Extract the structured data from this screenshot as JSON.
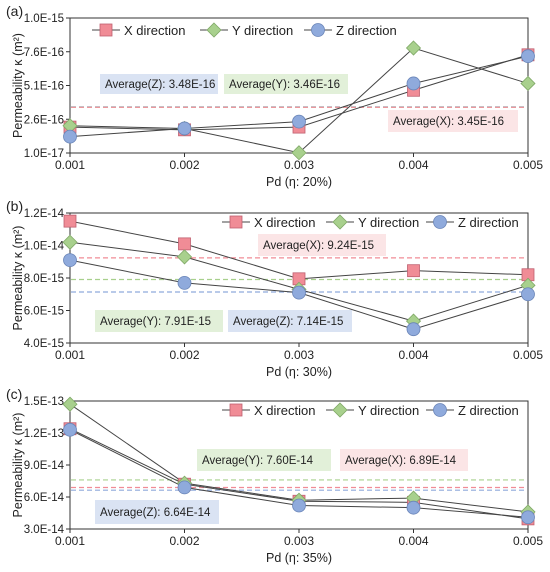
{
  "chart_data": [
    {
      "type": "line",
      "panel_label": "(a)",
      "title": "",
      "xlabel": "Pd (η: 20%)",
      "ylabel": "Permeability κ (m²)",
      "categories": [
        "0.001",
        "0.002",
        "0.003",
        "0.004",
        "0.005"
      ],
      "y_ticks": [
        "1.0E-17",
        "2.6E-16",
        "5.1E-16",
        "7.6E-16",
        "1.0E-15"
      ],
      "ylim": [
        1e-17,
        1e-15
      ],
      "legend_placement": "top",
      "series": [
        {
          "name": "X direction",
          "marker": "square",
          "color": "#f08c96",
          "values": [
            2e-16,
            1.8e-16,
            2e-16,
            4.7e-16,
            7.3e-16
          ]
        },
        {
          "name": "Y direction",
          "marker": "diamond",
          "color": "#a8d08d",
          "values": [
            2.1e-16,
            1.9e-16,
            1.2e-17,
            7.8e-16,
            5.2e-16
          ]
        },
        {
          "name": "Z direction",
          "marker": "circle",
          "color": "#8faadc",
          "values": [
            1.3e-16,
            1.9e-16,
            2.4e-16,
            5.2e-16,
            7.2e-16
          ]
        }
      ],
      "averages": [
        {
          "label": "Average(Z):  3.48E-16",
          "value": 3.48e-16,
          "series": "Z direction",
          "box_color": "#dae3f3",
          "line_color": "#8faadc"
        },
        {
          "label": "Average(Y):  3.46E-16",
          "value": 3.46e-16,
          "series": "Y direction",
          "box_color": "#e2f0d9",
          "line_color": "#a8d08d"
        },
        {
          "label": "Average(X):  3.45E-16",
          "value": 3.45e-16,
          "series": "X direction",
          "box_color": "#fbe5e6",
          "line_color": "#f08c96"
        }
      ]
    },
    {
      "type": "line",
      "panel_label": "(b)",
      "title": "",
      "xlabel": "Pd (η: 30%)",
      "ylabel": "Permeability κ (m²)",
      "categories": [
        "0.001",
        "0.002",
        "0.003",
        "0.004",
        "0.005"
      ],
      "y_ticks": [
        "4.0E-15",
        "6.0E-15",
        "8.0E-15",
        "1.0E-14",
        "1.2E-14"
      ],
      "ylim": [
        4e-15,
        1.2e-14
      ],
      "legend_placement": "top",
      "series": [
        {
          "name": "X direction",
          "marker": "square",
          "color": "#f08c96",
          "values": [
            1.15e-14,
            1.01e-14,
            7.95e-15,
            8.45e-15,
            8.2e-15
          ]
        },
        {
          "name": "Y direction",
          "marker": "diamond",
          "color": "#a8d08d",
          "values": [
            1.02e-14,
            9.3e-15,
            7.3e-15,
            5.35e-15,
            7.55e-15
          ]
        },
        {
          "name": "Z direction",
          "marker": "circle",
          "color": "#8faadc",
          "values": [
            9.1e-15,
            7.7e-15,
            7.1e-15,
            4.85e-15,
            7e-15
          ]
        }
      ],
      "averages": [
        {
          "label": "Average(X):  9.24E-15",
          "value": 9.24e-15,
          "series": "X direction",
          "box_color": "#fbe5e6",
          "line_color": "#f08c96"
        },
        {
          "label": "Average(Y):  7.91E-15",
          "value": 7.91e-15,
          "series": "Y direction",
          "box_color": "#e2f0d9",
          "line_color": "#a8d08d"
        },
        {
          "label": "Average(Z):  7.14E-15",
          "value": 7.14e-15,
          "series": "Z direction",
          "box_color": "#dae3f3",
          "line_color": "#8faadc"
        }
      ]
    },
    {
      "type": "line",
      "panel_label": "(c)",
      "title": "",
      "xlabel": "Pd (η: 35%)",
      "ylabel": "Permeability κ (m²)",
      "categories": [
        "0.001",
        "0.002",
        "0.003",
        "0.004",
        "0.005"
      ],
      "y_ticks": [
        "3.0E-14",
        "6.0E-14",
        "9.0E-14",
        "1.2E-13",
        "1.5E-13"
      ],
      "ylim": [
        3e-14,
        1.5e-13
      ],
      "legend_placement": "top",
      "series": [
        {
          "name": "X direction",
          "marker": "square",
          "color": "#f08c96",
          "values": [
            1.24e-13,
            7.2e-14,
            5.6e-14,
            5.5e-14,
            3.95e-14
          ]
        },
        {
          "name": "Y direction",
          "marker": "diamond",
          "color": "#a8d08d",
          "values": [
            1.47e-13,
            7.3e-14,
            5.7e-14,
            5.9e-14,
            4.6e-14
          ]
        },
        {
          "name": "Z direction",
          "marker": "circle",
          "color": "#8faadc",
          "values": [
            1.23e-13,
            6.9e-14,
            5.2e-14,
            5e-14,
            4.1e-14
          ]
        }
      ],
      "averages": [
        {
          "label": "Average(Y):    7.60E-14",
          "value": 7.6e-14,
          "series": "Y direction",
          "box_color": "#e2f0d9",
          "line_color": "#a8d08d"
        },
        {
          "label": "Average(X):   6.89E-14",
          "value": 6.89e-14,
          "series": "X direction",
          "box_color": "#fbe5e6",
          "line_color": "#f08c96"
        },
        {
          "label": "Average(Z):   6.64E-14",
          "value": 6.64e-14,
          "series": "Z direction",
          "box_color": "#dae3f3",
          "line_color": "#8faadc"
        }
      ]
    }
  ]
}
